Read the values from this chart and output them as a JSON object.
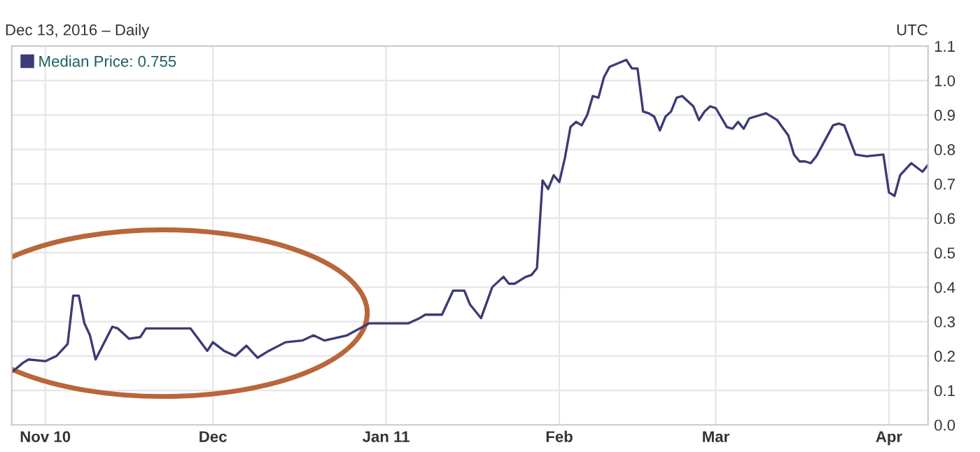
{
  "chart_data": {
    "type": "line",
    "subtitle": "Dec 13, 2016 – Daily",
    "annotations": [
      "UTC"
    ],
    "x": [
      "2010-10-26",
      "2010-10-28",
      "2010-10-29",
      "2010-11-01",
      "2010-11-03",
      "2010-11-05",
      "2010-11-06",
      "2010-11-07",
      "2010-11-08",
      "2010-11-09",
      "2010-11-10",
      "2010-11-13",
      "2010-11-14",
      "2010-11-16",
      "2010-11-18",
      "2010-11-19",
      "2010-11-27",
      "2010-11-30",
      "2010-12-01",
      "2010-12-03",
      "2010-12-05",
      "2010-12-07",
      "2010-12-09",
      "2010-12-11",
      "2010-12-14",
      "2010-12-17",
      "2010-12-19",
      "2010-12-21",
      "2010-12-25",
      "2010-12-29",
      "2011-01-05",
      "2011-01-07",
      "2011-01-08",
      "2011-01-11",
      "2011-01-13",
      "2011-01-15",
      "2011-01-16",
      "2011-01-18",
      "2011-01-20",
      "2011-01-22",
      "2011-01-23",
      "2011-01-24",
      "2011-01-26",
      "2011-01-27",
      "2011-01-28",
      "2011-01-29",
      "2011-01-30",
      "2011-01-31",
      "2011-02-01",
      "2011-02-02",
      "2011-02-03",
      "2011-02-04",
      "2011-02-05",
      "2011-02-06",
      "2011-02-07",
      "2011-02-08",
      "2011-02-09",
      "2011-02-10",
      "2011-02-13",
      "2011-02-14",
      "2011-02-15",
      "2011-02-16",
      "2011-02-17",
      "2011-02-18",
      "2011-02-19",
      "2011-02-20",
      "2011-02-21",
      "2011-02-22",
      "2011-02-23",
      "2011-02-25",
      "2011-02-26",
      "2011-02-27",
      "2011-02-28",
      "2011-03-01",
      "2011-03-03",
      "2011-03-04",
      "2011-03-05",
      "2011-03-06",
      "2011-03-07",
      "2011-03-10",
      "2011-03-12",
      "2011-03-14",
      "2011-03-15",
      "2011-03-16",
      "2011-03-17",
      "2011-03-18",
      "2011-03-19",
      "2011-03-22",
      "2011-03-23",
      "2011-03-24",
      "2011-03-26",
      "2011-03-28",
      "2011-03-31",
      "2011-04-01",
      "2011-04-02",
      "2011-04-03",
      "2011-04-05",
      "2011-04-07",
      "2011-04-08"
    ],
    "series": [
      {
        "name": "Median Price: 0.755",
        "color": "#3b3b78",
        "values": [
          0.153,
          0.18,
          0.19,
          0.185,
          0.2,
          0.235,
          0.375,
          0.375,
          0.295,
          0.26,
          0.19,
          0.285,
          0.28,
          0.25,
          0.255,
          0.28,
          0.28,
          0.215,
          0.24,
          0.215,
          0.2,
          0.23,
          0.195,
          0.215,
          0.24,
          0.245,
          0.26,
          0.245,
          0.26,
          0.295,
          0.295,
          0.31,
          0.32,
          0.32,
          0.39,
          0.39,
          0.35,
          0.31,
          0.4,
          0.43,
          0.41,
          0.41,
          0.43,
          0.435,
          0.455,
          0.71,
          0.685,
          0.725,
          0.705,
          0.775,
          0.865,
          0.88,
          0.87,
          0.9,
          0.955,
          0.95,
          1.01,
          1.04,
          1.06,
          1.035,
          1.035,
          0.91,
          0.905,
          0.895,
          0.855,
          0.895,
          0.91,
          0.95,
          0.955,
          0.925,
          0.885,
          0.91,
          0.925,
          0.92,
          0.865,
          0.86,
          0.88,
          0.86,
          0.89,
          0.905,
          0.885,
          0.84,
          0.785,
          0.765,
          0.765,
          0.76,
          0.78,
          0.87,
          0.875,
          0.87,
          0.785,
          0.78,
          0.785,
          0.675,
          0.665,
          0.725,
          0.76,
          0.735,
          0.755
        ]
      }
    ],
    "xlim": [
      "2010-10-26",
      "2011-04-08"
    ],
    "xticks": [
      {
        "value": "2010-11-01",
        "label": "Nov 10"
      },
      {
        "value": "2010-12-01",
        "label": "Dec"
      },
      {
        "value": "2011-01-01",
        "label": "Jan 11"
      },
      {
        "value": "2011-02-01",
        "label": "Feb"
      },
      {
        "value": "2011-03-01",
        "label": "Mar"
      },
      {
        "value": "2011-04-01",
        "label": "Apr"
      }
    ],
    "ylim": [
      0,
      1.1
    ],
    "yticks": [
      {
        "value": 0,
        "label": "0.0"
      },
      0.1,
      0.2,
      0.3,
      0.4,
      0.5,
      0.6,
      0.7,
      0.8,
      0.9,
      {
        "value": 1,
        "label": "1.0"
      },
      1.1
    ],
    "grid": true,
    "legend": "top left",
    "marker": "none",
    "line_style": "solid"
  }
}
